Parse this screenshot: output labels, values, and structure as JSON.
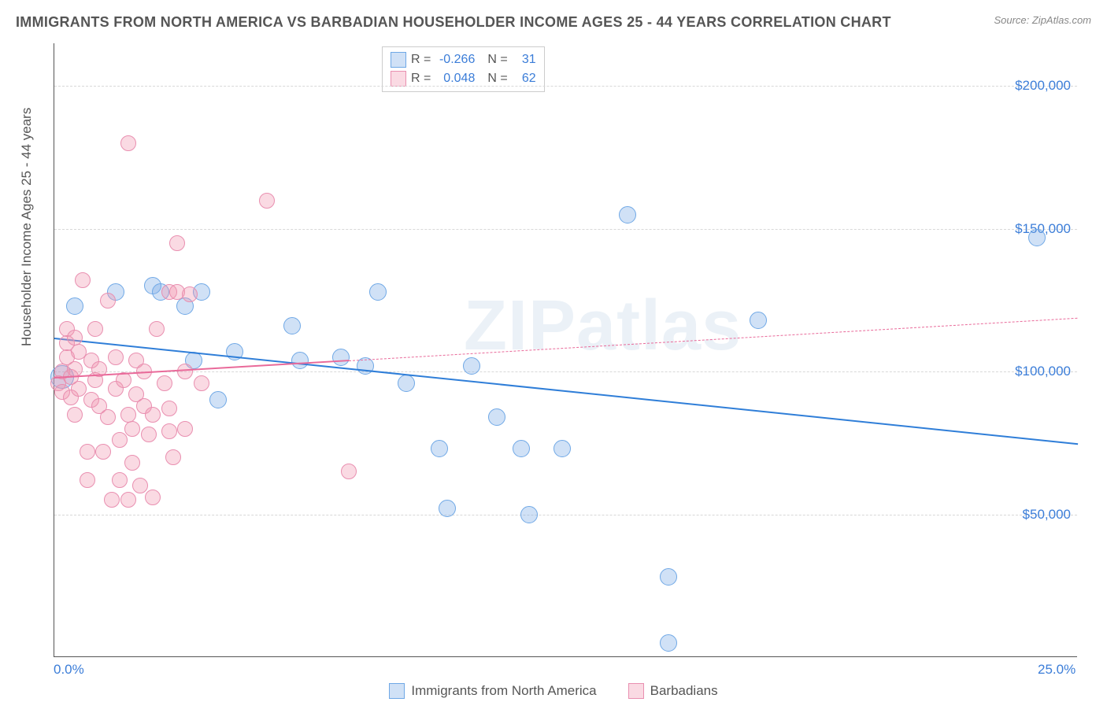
{
  "title": "IMMIGRANTS FROM NORTH AMERICA VS BARBADIAN HOUSEHOLDER INCOME AGES 25 - 44 YEARS CORRELATION CHART",
  "source": "Source: ZipAtlas.com",
  "y_axis_label": "Householder Income Ages 25 - 44 years",
  "x_axis": {
    "min": 0.0,
    "max": 25.0,
    "ticks": [
      {
        "value": 0.0,
        "label": "0.0%"
      },
      {
        "value": 25.0,
        "label": "25.0%"
      }
    ]
  },
  "y_axis": {
    "min": 0,
    "max": 215000,
    "ticks": [
      {
        "value": 50000,
        "label": "$50,000"
      },
      {
        "value": 100000,
        "label": "$100,000"
      },
      {
        "value": 150000,
        "label": "$150,000"
      },
      {
        "value": 200000,
        "label": "$200,000"
      }
    ]
  },
  "watermark": "ZIPatlas",
  "series": [
    {
      "id": "immigrants",
      "name": "Immigrants from North America",
      "fill_color": "rgba(120, 170, 230, 0.35)",
      "stroke_color": "#6fa8e6",
      "line_color": "#2f7ed8",
      "marker_radius": 11,
      "R": "-0.266",
      "N": "31",
      "trend": {
        "y_at_xmin": 112000,
        "y_at_xmax": 75000,
        "dash": "solid",
        "width": 2.5
      },
      "points": [
        {
          "x": 0.2,
          "y": 98000,
          "r": 15
        },
        {
          "x": 0.5,
          "y": 123000
        },
        {
          "x": 1.5,
          "y": 128000
        },
        {
          "x": 2.4,
          "y": 130000
        },
        {
          "x": 2.6,
          "y": 128000
        },
        {
          "x": 3.2,
          "y": 123000
        },
        {
          "x": 3.6,
          "y": 128000
        },
        {
          "x": 3.4,
          "y": 104000
        },
        {
          "x": 4.0,
          "y": 90000
        },
        {
          "x": 4.4,
          "y": 107000
        },
        {
          "x": 5.8,
          "y": 116000
        },
        {
          "x": 6.0,
          "y": 104000
        },
        {
          "x": 7.0,
          "y": 105000
        },
        {
          "x": 7.6,
          "y": 102000
        },
        {
          "x": 7.9,
          "y": 128000
        },
        {
          "x": 8.6,
          "y": 96000
        },
        {
          "x": 9.4,
          "y": 73000
        },
        {
          "x": 9.6,
          "y": 52000
        },
        {
          "x": 10.2,
          "y": 102000
        },
        {
          "x": 10.8,
          "y": 84000
        },
        {
          "x": 11.4,
          "y": 73000
        },
        {
          "x": 11.6,
          "y": 50000
        },
        {
          "x": 12.4,
          "y": 73000
        },
        {
          "x": 14.0,
          "y": 155000
        },
        {
          "x": 15.0,
          "y": 28000
        },
        {
          "x": 15.0,
          "y": 5000
        },
        {
          "x": 17.2,
          "y": 118000
        },
        {
          "x": 24.0,
          "y": 147000
        }
      ]
    },
    {
      "id": "barbadians",
      "name": "Barbadians",
      "fill_color": "rgba(240, 150, 175, 0.35)",
      "stroke_color": "#e98fb0",
      "line_color": "#e96a9a",
      "marker_radius": 10,
      "R": "0.048",
      "N": "62",
      "trend": {
        "y_at_xmin": 98000,
        "y_at_xmax": 119000,
        "dash": "dashed",
        "width": 1.5,
        "solid_until_x": 7.2
      },
      "points": [
        {
          "x": 0.1,
          "y": 96000
        },
        {
          "x": 0.2,
          "y": 100000
        },
        {
          "x": 0.2,
          "y": 93000
        },
        {
          "x": 0.3,
          "y": 110000
        },
        {
          "x": 0.3,
          "y": 105000
        },
        {
          "x": 0.3,
          "y": 115000
        },
        {
          "x": 0.4,
          "y": 98000
        },
        {
          "x": 0.4,
          "y": 91000
        },
        {
          "x": 0.5,
          "y": 112000
        },
        {
          "x": 0.5,
          "y": 101000
        },
        {
          "x": 0.5,
          "y": 85000
        },
        {
          "x": 0.6,
          "y": 107000
        },
        {
          "x": 0.6,
          "y": 94000
        },
        {
          "x": 0.7,
          "y": 132000
        },
        {
          "x": 0.8,
          "y": 72000
        },
        {
          "x": 0.8,
          "y": 62000
        },
        {
          "x": 0.9,
          "y": 90000
        },
        {
          "x": 0.9,
          "y": 104000
        },
        {
          "x": 1.0,
          "y": 97000
        },
        {
          "x": 1.0,
          "y": 115000
        },
        {
          "x": 1.1,
          "y": 88000
        },
        {
          "x": 1.1,
          "y": 101000
        },
        {
          "x": 1.2,
          "y": 72000
        },
        {
          "x": 1.3,
          "y": 125000
        },
        {
          "x": 1.3,
          "y": 84000
        },
        {
          "x": 1.4,
          "y": 55000
        },
        {
          "x": 1.5,
          "y": 94000
        },
        {
          "x": 1.5,
          "y": 105000
        },
        {
          "x": 1.6,
          "y": 76000
        },
        {
          "x": 1.6,
          "y": 62000
        },
        {
          "x": 1.7,
          "y": 97000
        },
        {
          "x": 1.8,
          "y": 55000
        },
        {
          "x": 1.8,
          "y": 85000
        },
        {
          "x": 1.8,
          "y": 180000
        },
        {
          "x": 1.9,
          "y": 68000
        },
        {
          "x": 1.9,
          "y": 80000
        },
        {
          "x": 2.0,
          "y": 92000
        },
        {
          "x": 2.0,
          "y": 104000
        },
        {
          "x": 2.1,
          "y": 60000
        },
        {
          "x": 2.2,
          "y": 88000
        },
        {
          "x": 2.2,
          "y": 100000
        },
        {
          "x": 2.3,
          "y": 78000
        },
        {
          "x": 2.4,
          "y": 85000
        },
        {
          "x": 2.4,
          "y": 56000
        },
        {
          "x": 2.5,
          "y": 115000
        },
        {
          "x": 2.7,
          "y": 96000
        },
        {
          "x": 2.8,
          "y": 128000
        },
        {
          "x": 2.8,
          "y": 87000
        },
        {
          "x": 2.8,
          "y": 79000
        },
        {
          "x": 2.9,
          "y": 70000
        },
        {
          "x": 3.0,
          "y": 145000
        },
        {
          "x": 3.0,
          "y": 128000
        },
        {
          "x": 3.2,
          "y": 100000
        },
        {
          "x": 3.3,
          "y": 127000
        },
        {
          "x": 3.2,
          "y": 80000
        },
        {
          "x": 3.6,
          "y": 96000
        },
        {
          "x": 5.2,
          "y": 160000
        },
        {
          "x": 7.2,
          "y": 65000
        }
      ]
    }
  ],
  "legend": [
    {
      "swatch_fill": "rgba(120, 170, 230, 0.35)",
      "swatch_stroke": "#6fa8e6",
      "label": "Immigrants from North America"
    },
    {
      "swatch_fill": "rgba(240, 150, 175, 0.35)",
      "swatch_stroke": "#e98fb0",
      "label": "Barbadians"
    }
  ]
}
